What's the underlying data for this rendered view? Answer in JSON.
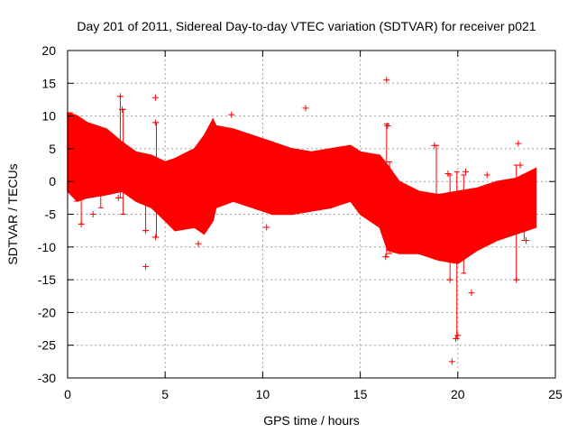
{
  "chart_data": {
    "type": "scatter",
    "title": "Day 201 of 2011, Sidereal Day-to-day VTEC variation (SDTVAR) for receiver p021",
    "xlabel": "GPS time / hours",
    "ylabel": "SDTVAR / TECUs",
    "xlim": [
      0,
      25
    ],
    "ylim": [
      -30,
      20
    ],
    "xticks": [
      0,
      5,
      10,
      15,
      20,
      25
    ],
    "yticks": [
      -30,
      -25,
      -20,
      -15,
      -10,
      -5,
      0,
      5,
      10,
      15,
      20
    ],
    "grid": true,
    "series": [
      {
        "name": "SDTVAR",
        "color": "#ff0000",
        "marker": "+",
        "band": {
          "x": [
            0.0,
            0.5,
            1.0,
            2.0,
            2.8,
            3.5,
            4.3,
            5.0,
            5.5,
            6.5,
            7.0,
            7.45,
            7.6,
            8.5,
            9.5,
            10.5,
            11.5,
            12.5,
            13.5,
            14.5,
            15.0,
            16.0,
            16.4,
            17.0,
            18.0,
            19.0,
            20.0,
            21.0,
            22.0,
            23.0,
            24.0
          ],
          "high": [
            10.5,
            10.0,
            9.0,
            8.0,
            6.0,
            4.5,
            4.0,
            3.0,
            3.5,
            5.0,
            7.0,
            9.5,
            8.5,
            8.0,
            7.0,
            6.0,
            5.0,
            4.5,
            5.0,
            5.5,
            4.5,
            4.0,
            2.5,
            0.0,
            -1.5,
            -2.0,
            -1.5,
            -1.0,
            0.0,
            0.5,
            2.0
          ],
          "low": [
            -1.5,
            -3.0,
            -2.5,
            -2.0,
            -1.5,
            -3.0,
            -4.0,
            -6.0,
            -7.5,
            -7.0,
            -8.0,
            -6.0,
            -4.0,
            -3.0,
            -4.0,
            -5.0,
            -5.0,
            -4.5,
            -4.0,
            -3.0,
            -5.0,
            -7.0,
            -10.5,
            -11.0,
            -11.0,
            -12.0,
            -12.5,
            -10.5,
            -9.0,
            -8.0,
            -7.0
          ]
        },
        "outliers": [
          {
            "x": 0.3,
            "y": 8.5
          },
          {
            "x": 0.7,
            "y": -6.5
          },
          {
            "x": 1.3,
            "y": -5.0
          },
          {
            "x": 2.7,
            "y": 13.0
          },
          {
            "x": 2.8,
            "y": 11.0
          },
          {
            "x": 2.6,
            "y": -2.5
          },
          {
            "x": 4.0,
            "y": -13.0
          },
          {
            "x": 4.0,
            "y": -7.5
          },
          {
            "x": 4.5,
            "y": 12.8
          },
          {
            "x": 4.5,
            "y": 9.0
          },
          {
            "x": 4.5,
            "y": -8.5
          },
          {
            "x": 4.9,
            "y": -5.0
          },
          {
            "x": 6.7,
            "y": -9.5
          },
          {
            "x": 8.4,
            "y": 10.2
          },
          {
            "x": 10.2,
            "y": -7.0
          },
          {
            "x": 12.2,
            "y": 11.2
          },
          {
            "x": 16.35,
            "y": 15.5
          },
          {
            "x": 16.4,
            "y": 8.5
          },
          {
            "x": 16.3,
            "y": -11.5
          },
          {
            "x": 18.8,
            "y": 5.5
          },
          {
            "x": 19.6,
            "y": -15.0
          },
          {
            "x": 19.7,
            "y": -27.5
          },
          {
            "x": 19.9,
            "y": -24.0
          },
          {
            "x": 20.0,
            "y": -23.5
          },
          {
            "x": 19.5,
            "y": 1.2
          },
          {
            "x": 20.4,
            "y": 1.5
          },
          {
            "x": 20.7,
            "y": -17.0
          },
          {
            "x": 21.5,
            "y": 1.0
          },
          {
            "x": 23.1,
            "y": 5.8
          },
          {
            "x": 23.0,
            "y": -15.0
          },
          {
            "x": 23.5,
            "y": -9.0
          },
          {
            "x": 23.2,
            "y": 2.5
          }
        ],
        "spikes": [
          {
            "x": 0.15,
            "from": 2.0,
            "to": 10.5
          },
          {
            "x": 0.45,
            "from": -3.0,
            "to": 9.5
          },
          {
            "x": 0.7,
            "from": -6.5,
            "to": 6.0
          },
          {
            "x": 1.7,
            "from": -4.0,
            "to": 3.0
          },
          {
            "x": 2.7,
            "from": -2.5,
            "to": 13.0
          },
          {
            "x": 2.85,
            "from": -5.0,
            "to": 11.0
          },
          {
            "x": 4.0,
            "from": -7.5,
            "to": 1.0
          },
          {
            "x": 4.55,
            "from": -8.5,
            "to": 9.0
          },
          {
            "x": 16.35,
            "from": -11.5,
            "to": 8.8
          },
          {
            "x": 16.5,
            "from": -11.0,
            "to": 3.0
          },
          {
            "x": 18.9,
            "from": -4.0,
            "to": 5.5
          },
          {
            "x": 19.6,
            "from": -15.0,
            "to": 1.0
          },
          {
            "x": 19.95,
            "from": -24.0,
            "to": 1.5
          },
          {
            "x": 20.3,
            "from": -14.0,
            "to": 1.0
          },
          {
            "x": 23.0,
            "from": -15.0,
            "to": 2.5
          },
          {
            "x": 23.4,
            "from": -9.0,
            "to": 1.0
          }
        ]
      }
    ]
  }
}
